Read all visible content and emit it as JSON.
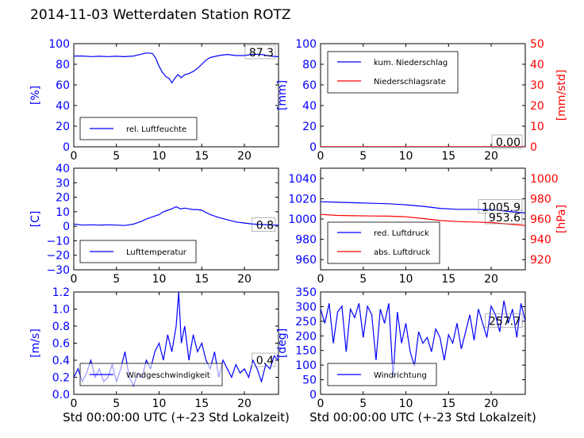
{
  "title": "2014-11-03 Wetterdaten Station ROTZ",
  "colors": {
    "left_axis": "#0000ff",
    "right_axis": "#ff0000",
    "series_blue": "#0000ff",
    "series_red": "#ff0000",
    "series_light": "#8888ff"
  },
  "chart_data": [
    {
      "type": "line",
      "ylabel": "[%]",
      "xlim": [
        0,
        24
      ],
      "ylim": [
        0,
        100
      ],
      "xticks": [
        "0",
        "5",
        "10",
        "15",
        "20"
      ],
      "yticks": [
        "0",
        "20",
        "40",
        "60",
        "80",
        "100"
      ],
      "legend": [
        "rel. Luftfeuchte"
      ],
      "legend_loc": "lower-left",
      "last_value_label": "87.3",
      "series": [
        {
          "name": "rel. Luftfeuchte",
          "color": "#0000ff",
          "x": [
            0,
            1,
            2,
            3,
            4,
            5,
            6,
            7,
            7.8,
            8.5,
            9.2,
            9.6,
            10,
            10.4,
            10.8,
            11.2,
            11.5,
            11.8,
            12.2,
            12.6,
            13,
            13.5,
            14,
            14.5,
            15,
            15.5,
            16,
            17,
            18,
            19,
            20,
            21,
            22,
            23,
            24
          ],
          "y": [
            88,
            88,
            87.5,
            87.8,
            87.5,
            87.8,
            87.4,
            88,
            89.5,
            91,
            90.5,
            86,
            78,
            72,
            68,
            66,
            62,
            66,
            70,
            67,
            70,
            71,
            73,
            76,
            80,
            84,
            86.5,
            88.5,
            89.5,
            88.5,
            88.5,
            89.8,
            89.5,
            88,
            87.3
          ]
        }
      ]
    },
    {
      "type": "line",
      "ylabel": "[mm]",
      "ylabel_right": "[mm/std]",
      "xlim": [
        0,
        24
      ],
      "ylim": [
        0,
        100
      ],
      "ylim_right": [
        0,
        50
      ],
      "xticks": [
        "0",
        "5",
        "10",
        "15",
        "20"
      ],
      "yticks": [
        "0",
        "20",
        "40",
        "60",
        "80",
        "100"
      ],
      "yticks_right": [
        "0",
        "10",
        "20",
        "30",
        "40",
        "50"
      ],
      "legend": [
        "kum. Niederschlag",
        "Niederschlagsrate"
      ],
      "legend_loc": "upper-left",
      "last_value_label": "0.00",
      "series": [
        {
          "name": "kum. Niederschlag",
          "color": "#0000ff",
          "x": [
            0,
            24
          ],
          "y": [
            0,
            0
          ]
        },
        {
          "name": "Niederschlagsrate",
          "color": "#ff0000",
          "x": [
            0,
            24
          ],
          "y": [
            0,
            0
          ]
        }
      ]
    },
    {
      "type": "line",
      "ylabel": "[C]",
      "xlim": [
        0,
        24
      ],
      "ylim": [
        -30,
        40
      ],
      "xticks": [
        "0",
        "5",
        "10",
        "15",
        "20"
      ],
      "yticks": [
        "−30",
        "−20",
        "−10",
        "0",
        "10",
        "20",
        "30",
        "40"
      ],
      "legend": [
        "Lufttemperatur"
      ],
      "legend_loc": "lower-left",
      "last_value_label": "0.8",
      "series": [
        {
          "name": "Lufttemperatur",
          "color": "#0000ff",
          "x": [
            0,
            1,
            2,
            3,
            4,
            5,
            6,
            6.5,
            7,
            7.5,
            8,
            8.5,
            9,
            9.5,
            10,
            10.5,
            11,
            11.5,
            12,
            12.5,
            13,
            13.5,
            14,
            14.5,
            15,
            16,
            17,
            18,
            19,
            20,
            21,
            22,
            23,
            24
          ],
          "y": [
            1.5,
            0.8,
            1,
            0.8,
            1,
            0.8,
            0.5,
            1,
            1.5,
            2.5,
            3.5,
            5,
            6,
            7,
            8,
            10,
            11,
            12,
            13.5,
            12,
            12.5,
            12,
            11.5,
            11.5,
            11,
            8,
            6,
            4.5,
            3,
            2.2,
            1.5,
            1.2,
            0.9,
            0.8
          ]
        }
      ]
    },
    {
      "type": "line",
      "ylabel_right": "[hPa]",
      "xlim": [
        0,
        24
      ],
      "ylim": [
        950,
        1050
      ],
      "ylim_right": [
        910,
        1010
      ],
      "xticks": [
        "0",
        "5",
        "10",
        "15",
        "20"
      ],
      "yticks": [
        "960",
        "980",
        "1000",
        "1020",
        "1040"
      ],
      "yticks_right": [
        "920",
        "940",
        "960",
        "980",
        "1000"
      ],
      "legend": [
        "red. Luftdruck",
        "abs. Luftdruck"
      ],
      "legend_loc": "lower-left",
      "value_labels": [
        "1005.9",
        "953.6"
      ],
      "series": [
        {
          "name": "red. Luftdruck",
          "color": "#0000ff",
          "x": [
            0,
            2,
            4,
            6,
            8,
            10,
            12,
            14,
            16,
            18,
            20,
            22,
            24
          ],
          "y": [
            1017,
            1016.5,
            1016,
            1015.5,
            1015,
            1014,
            1012.5,
            1010.5,
            1009.5,
            1009.5,
            1009.2,
            1007.5,
            1005.9
          ]
        },
        {
          "name": "abs. Luftdruck",
          "color": "#ff0000",
          "axis": "right",
          "x": [
            0,
            2,
            4,
            6,
            8,
            10,
            12,
            14,
            16,
            18,
            20,
            22,
            24
          ],
          "y": [
            964.5,
            963.5,
            963.2,
            963,
            962.8,
            962.2,
            960.5,
            958.5,
            957.5,
            957,
            956.5,
            955,
            953.6
          ]
        }
      ]
    },
    {
      "type": "line",
      "ylabel": "[m/s]",
      "xlabel": "Std 00:00:00 UTC (+-23 Std Lokalzeit)",
      "xlim": [
        0,
        24
      ],
      "ylim": [
        0,
        1.2
      ],
      "xticks": [
        "0",
        "5",
        "10",
        "15",
        "20"
      ],
      "yticks": [
        "0.0",
        "0.2",
        "0.4",
        "0.6",
        "0.8",
        "1.0",
        "1.2"
      ],
      "legend": [
        "Windgeschwindigkeit"
      ],
      "legend_loc": "lower-left",
      "last_value_label": "0.4",
      "series": [
        {
          "name": "Windgeschwindigkeit",
          "color": "#0000ff",
          "x": [
            0,
            0.5,
            1,
            1.5,
            2,
            2.5,
            3,
            3.5,
            4,
            4.5,
            5,
            5.5,
            6,
            6.5,
            7,
            7.5,
            8,
            8.5,
            9,
            9.5,
            10,
            10.5,
            11,
            11.5,
            12,
            12.3,
            12.6,
            13,
            13.5,
            14,
            14.5,
            15,
            15.5,
            16,
            16.5,
            17,
            17.5,
            18,
            18.5,
            19,
            19.5,
            20,
            20.5,
            21,
            21.5,
            22,
            22.5,
            23,
            23.5,
            24
          ],
          "y": [
            0.2,
            0.3,
            0.15,
            0.25,
            0.4,
            0.2,
            0.3,
            0.15,
            0.2,
            0.35,
            0.15,
            0.3,
            0.5,
            0.2,
            0.1,
            0.25,
            0.2,
            0.4,
            0.3,
            0.5,
            0.6,
            0.4,
            0.7,
            0.5,
            0.8,
            1.2,
            0.6,
            0.8,
            0.4,
            0.7,
            0.5,
            0.6,
            0.4,
            0.3,
            0.5,
            0.2,
            0.4,
            0.3,
            0.2,
            0.35,
            0.25,
            0.3,
            0.2,
            0.4,
            0.3,
            0.15,
            0.35,
            0.3,
            0.45,
            0.4
          ]
        }
      ]
    },
    {
      "type": "line",
      "ylabel": "[deg]",
      "xlabel": "Std 00:00:00 UTC (+-23 Std Lokalzeit)",
      "xlim": [
        0,
        24
      ],
      "ylim": [
        0,
        360
      ],
      "xticks": [
        "0",
        "5",
        "10",
        "15",
        "20"
      ],
      "yticks": [
        "0",
        "50",
        "100",
        "150",
        "200",
        "250",
        "300",
        "350"
      ],
      "legend": [
        "Windrichtung"
      ],
      "legend_loc": "lower-left",
      "last_value_label": "257.7",
      "series": [
        {
          "name": "Windrichtung",
          "color": "#0000ff",
          "x": [
            0,
            0.5,
            1,
            1.5,
            2,
            2.5,
            3,
            3.5,
            4,
            4.5,
            5,
            5.5,
            6,
            6.5,
            7,
            7.5,
            8,
            8.5,
            9,
            9.5,
            10,
            10.5,
            11,
            11.5,
            12,
            12.5,
            13,
            13.5,
            14,
            14.5,
            15,
            15.5,
            16,
            16.5,
            17,
            17.5,
            18,
            18.5,
            19,
            19.5,
            20,
            20.5,
            21,
            21.5,
            22,
            22.5,
            23,
            23.5,
            24
          ],
          "y": [
            300,
            250,
            320,
            180,
            290,
            310,
            150,
            300,
            270,
            320,
            200,
            310,
            280,
            120,
            300,
            250,
            320,
            60,
            290,
            180,
            250,
            150,
            100,
            220,
            180,
            200,
            150,
            230,
            200,
            120,
            210,
            180,
            250,
            160,
            220,
            280,
            190,
            300,
            250,
            200,
            310,
            280,
            220,
            330,
            250,
            300,
            200,
            320,
            257.7
          ]
        }
      ]
    }
  ]
}
